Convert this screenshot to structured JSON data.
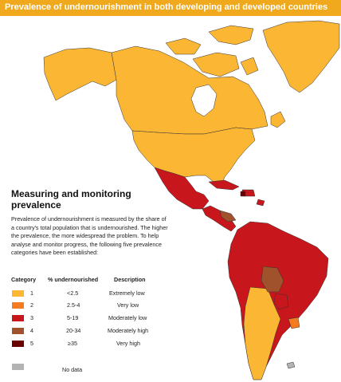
{
  "header": {
    "title": "Prevalence of undernourishment in both developing and developed countries"
  },
  "panel": {
    "heading": "Measuring and monitoring prevalence",
    "body": "Prevalence of undernourishment is measured by the share of a country's total population that is undernourished. The higher the prevalence, the more widespread the problem. To help analyse and monitor progress, the following five prevalence categories have been established:"
  },
  "legend": {
    "headers": {
      "category": "Category",
      "percent": "% undernourished",
      "description": "Description"
    },
    "rows": [
      {
        "category": "1",
        "percent": "<2.5",
        "description": "Extremely low",
        "color": "#fbb634"
      },
      {
        "category": "2",
        "percent": "2.5-4",
        "description": "Very low",
        "color": "#f47b20"
      },
      {
        "category": "3",
        "percent": "5-19",
        "description": "Moderately low",
        "color": "#c8161d"
      },
      {
        "category": "4",
        "percent": "20-34",
        "description": "Moderately high",
        "color": "#a0522d"
      },
      {
        "category": "5",
        "percent": "≥35",
        "description": "Very high",
        "color": "#6b0000"
      }
    ],
    "nodata": {
      "label": "No data",
      "color": "#b3b3b3"
    }
  },
  "colors": {
    "header": "#f0a81c",
    "ocean": "#ffffff",
    "border": "#333333"
  }
}
